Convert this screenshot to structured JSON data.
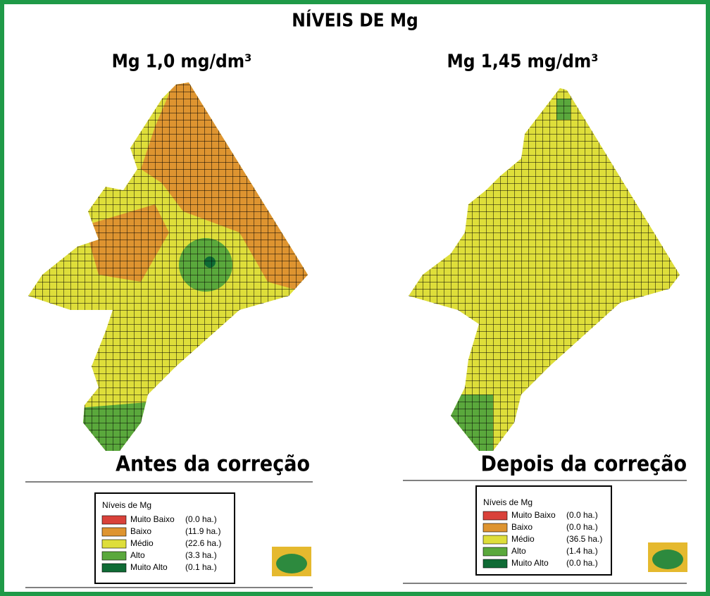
{
  "title": "NÍVEIS DE Mg",
  "panels": [
    {
      "subtitle": "Mg 1,0 mg/dm³",
      "caption": "Antes da correção",
      "legend": {
        "title": "Níveis de Mg",
        "items": [
          {
            "label": "Muito Baixo",
            "area": "(0.0 ha.)",
            "color": "#d9413a"
          },
          {
            "label": "Baixo",
            "area": "(11.9 ha.)",
            "color": "#de9430"
          },
          {
            "label": "Médio",
            "area": "(22.6 ha.)",
            "color": "#dede3a"
          },
          {
            "label": "Alto",
            "area": "(3.3 ha.)",
            "color": "#5aa83c"
          },
          {
            "label": "Muito Alto",
            "area": "(0.1 ha.)",
            "color": "#0f6b35"
          }
        ]
      }
    },
    {
      "subtitle": "Mg 1,45 mg/dm³",
      "caption": "Depois da correção",
      "legend": {
        "title": "Níveis de Mg",
        "items": [
          {
            "label": "Muito Baixo",
            "area": "(0.0 ha.)",
            "color": "#d9413a"
          },
          {
            "label": "Baixo",
            "area": "(0.0 ha.)",
            "color": "#de9430"
          },
          {
            "label": "Médio",
            "area": "(36.5 ha.)",
            "color": "#dede3a"
          },
          {
            "label": "Alto",
            "area": "(1.4 ha.)",
            "color": "#5aa83c"
          },
          {
            "label": "Muito Alto",
            "area": "(0.0 ha.)",
            "color": "#0f6b35"
          }
        ]
      }
    }
  ]
}
